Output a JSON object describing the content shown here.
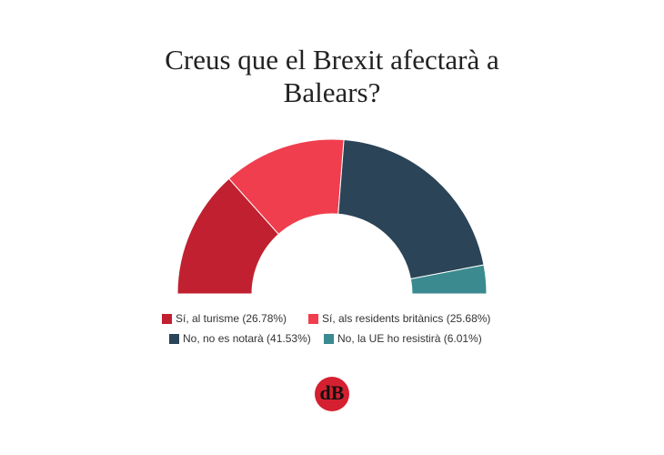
{
  "chart_data": {
    "type": "donut",
    "arc": "half",
    "title": "Creus que el Brexit afectarà a Balears?",
    "series": [
      {
        "name": "Sí, al turisme (26.78%)",
        "color": "#c0202f",
        "values": [
          26.78
        ]
      },
      {
        "name": "Sí, als residents britànics (25.68%)",
        "color": "#f03e4e",
        "values": [
          25.68
        ]
      },
      {
        "name": "No, no es notarà (41.53%)",
        "color": "#2b4457",
        "values": [
          41.53
        ]
      },
      {
        "name": "No, la UE ho resistirà (6.01%)",
        "color": "#3a8a8f",
        "values": [
          6.01
        ]
      }
    ]
  },
  "logo": "dB"
}
